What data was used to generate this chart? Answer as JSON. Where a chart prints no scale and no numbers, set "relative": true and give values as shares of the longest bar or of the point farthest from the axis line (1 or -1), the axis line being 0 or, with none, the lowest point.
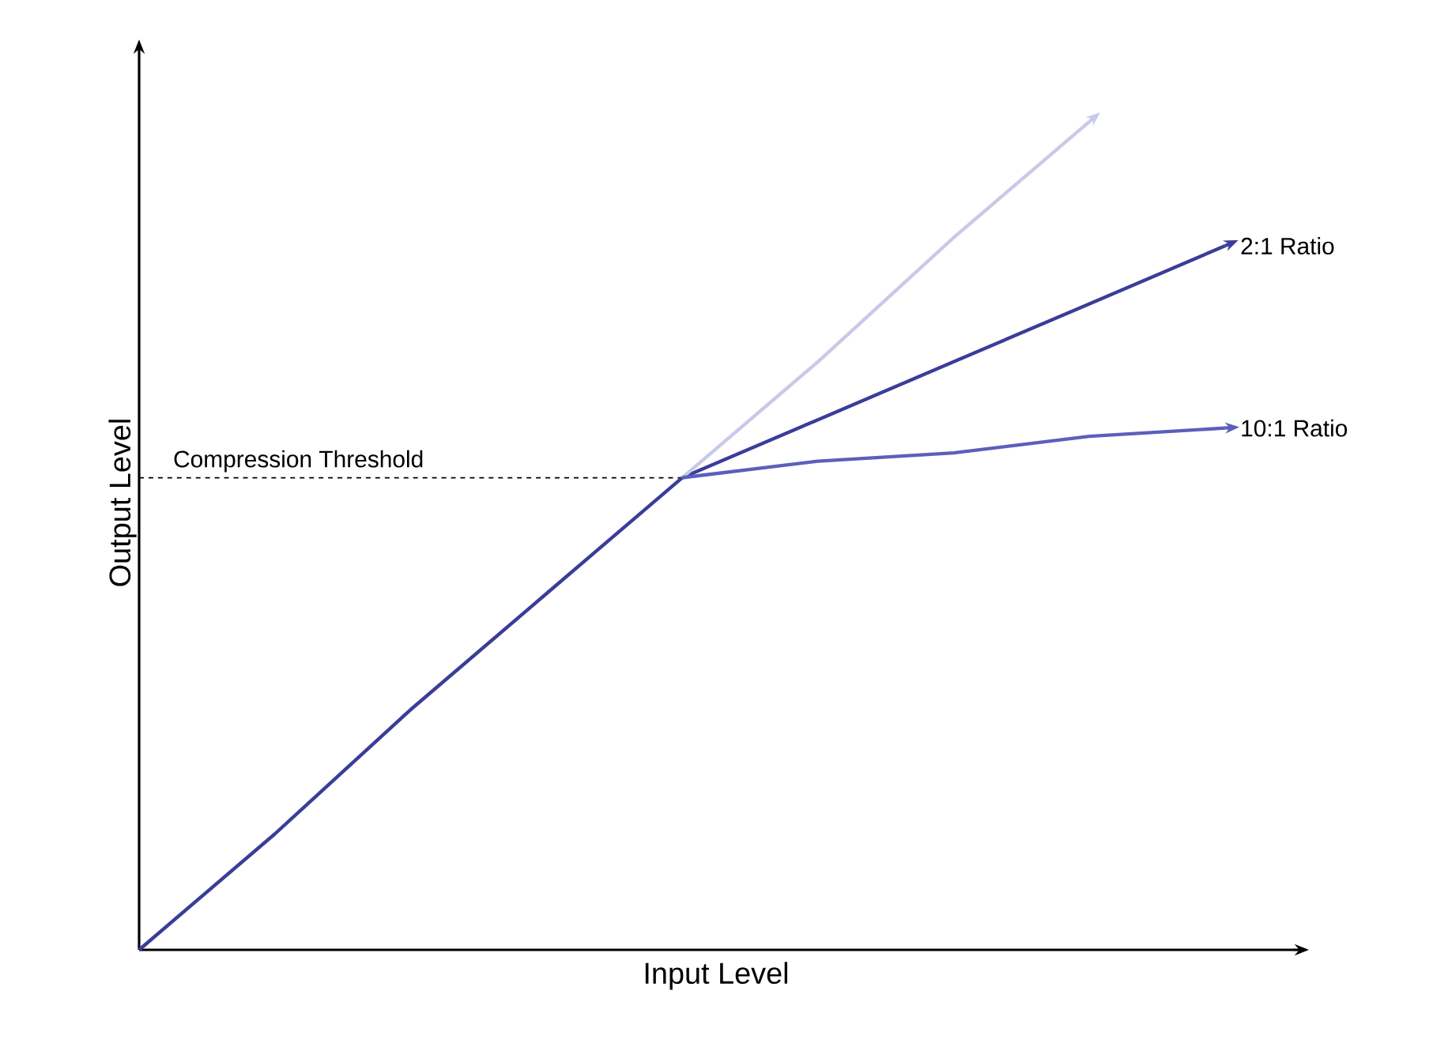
{
  "chart_data": {
    "type": "line",
    "relative": true,
    "xlabel": "Input Level",
    "ylabel": "Output Level",
    "categories": [
      null,
      null,
      null,
      null,
      null,
      null,
      null,
      null,
      null
    ],
    "legend": "right",
    "marker": "none",
    "line_style": "solid",
    "series": [
      {
        "name": "2:1 Ratio",
        "color": "#3a3d98",
        "values": [
          0,
          0.14,
          0.29,
          0.43,
          0.57,
          0.64,
          0.71,
          0.78,
          0.85
        ]
      },
      {
        "color": "#c9c9e8",
        "values": [
          null,
          null,
          null,
          null,
          0.57,
          0.71,
          0.86,
          1,
          null
        ]
      },
      {
        "name": "10:1 Ratio",
        "color": "#5b5fbb",
        "values": [
          null,
          null,
          null,
          null,
          0.57,
          0.59,
          0.6,
          0.62,
          0.63
        ]
      }
    ],
    "ref_lines": [
      {
        "axis": "y",
        "value": 0.57,
        "label": "Compression Threshold",
        "color": "#000000",
        "line_style": "dashed"
      }
    ]
  }
}
